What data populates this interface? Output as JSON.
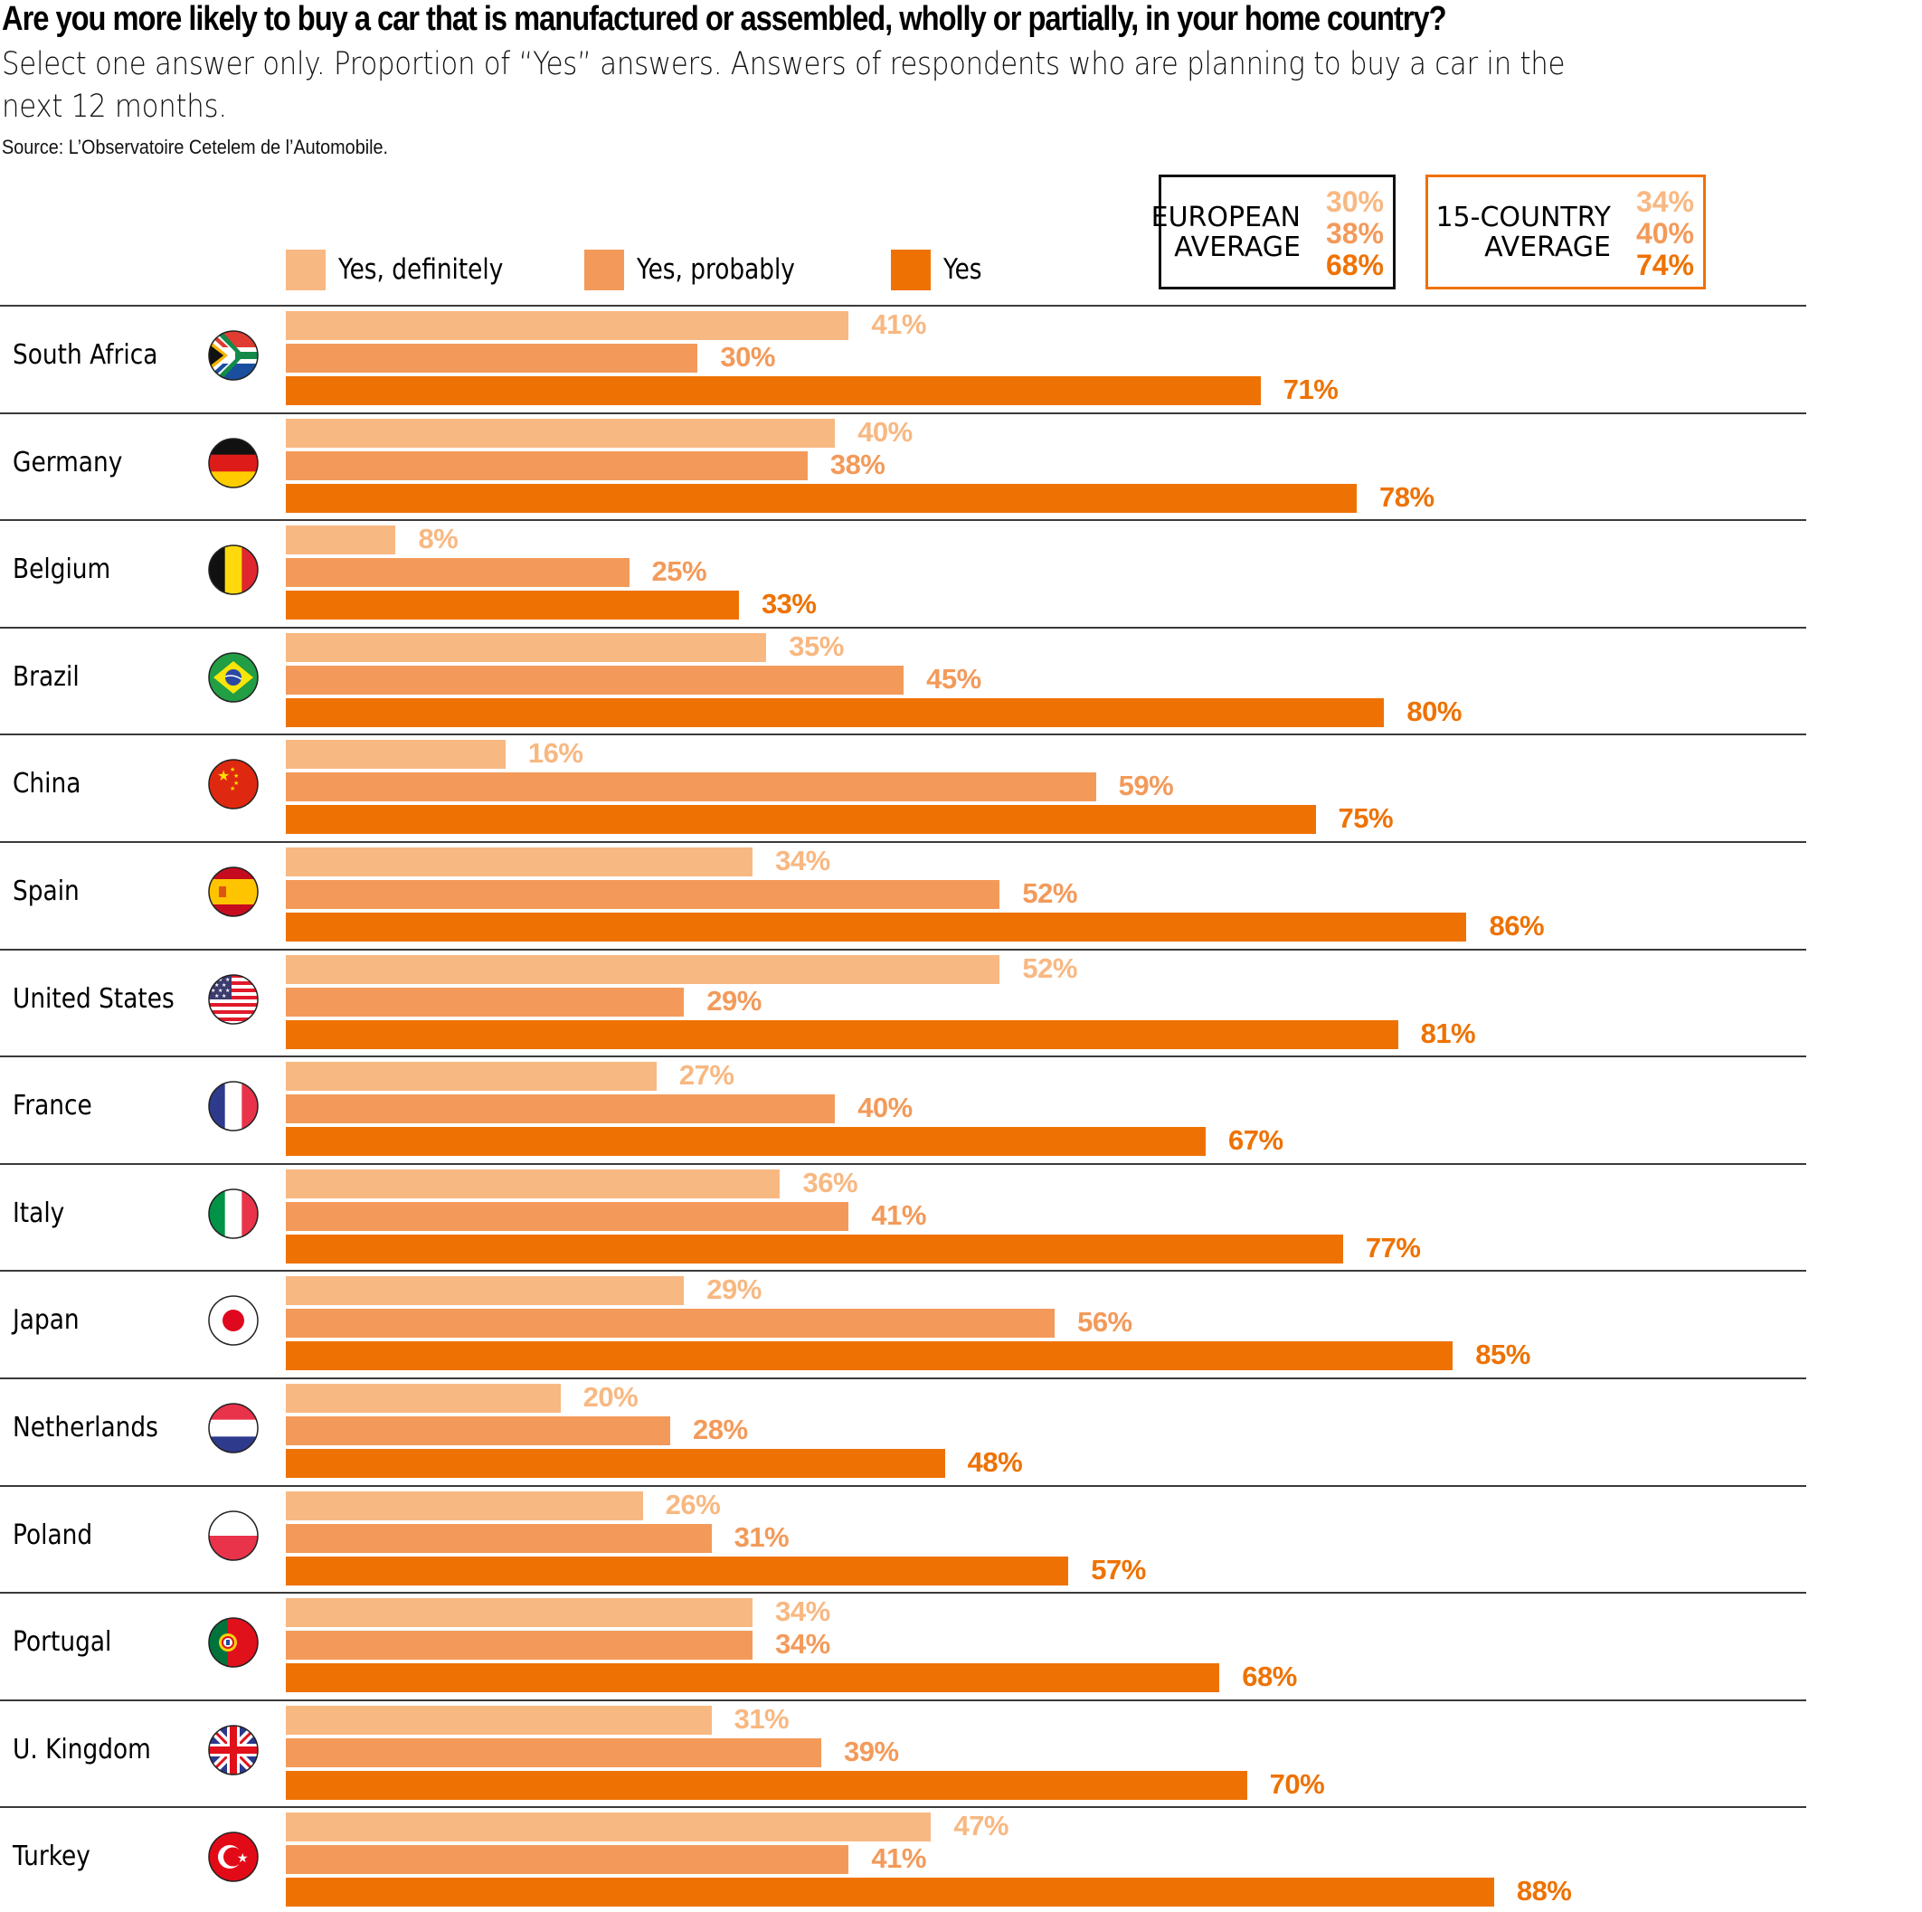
{
  "header": {
    "title": "Are you more likely to buy a car that is manufactured or assembled, wholly or partially, in your home country?",
    "subtitle": "Select one answer only. Proportion of “Yes” answers. Answers of respondents who are planning to buy a car in the next 12 months.",
    "source": "Source: L’Observatoire Cetelem de l’Automobile."
  },
  "colors": {
    "definitely": "#f8b882",
    "probably": "#f39a5a",
    "yes": "#ee7203",
    "divider": "#3a3a3a"
  },
  "legend": [
    {
      "label": "Yes, definitely",
      "series": "definitely"
    },
    {
      "label": "Yes, probably",
      "series": "probably"
    },
    {
      "label": "Yes",
      "series": "yes"
    }
  ],
  "averages": [
    {
      "label": "EUROPEAN\nAVERAGE",
      "values": [
        "30%",
        "38%",
        "68%"
      ]
    },
    {
      "label": "15-COUNTRY\nAVERAGE",
      "values": [
        "34%",
        "40%",
        "74%"
      ]
    }
  ],
  "chart_data": {
    "type": "bar",
    "orientation": "horizontal",
    "title": "Are you more likely to buy a car that is manufactured or assembled, wholly or partially, in your home country?",
    "subtitle": "Select one answer only. Proportion of “Yes” answers. Answers of respondents who are planning to buy a car in the next 12 months.",
    "xlabel": "",
    "ylabel": "",
    "xlim": [
      0,
      100
    ],
    "grid": false,
    "legend_position": "top",
    "categories": [
      "South Africa",
      "Germany",
      "Belgium",
      "Brazil",
      "China",
      "Spain",
      "United States",
      "France",
      "Italy",
      "Japan",
      "Netherlands",
      "Poland",
      "Portugal",
      "U. Kingdom",
      "Turkey"
    ],
    "flags": [
      "south-africa",
      "germany",
      "belgium",
      "brazil",
      "china",
      "spain",
      "united-states",
      "france",
      "italy",
      "japan",
      "netherlands",
      "poland",
      "portugal",
      "united-kingdom",
      "turkey"
    ],
    "series": [
      {
        "name": "Yes, definitely",
        "key": "definitely",
        "values": [
          41,
          40,
          8,
          35,
          16,
          34,
          52,
          27,
          36,
          29,
          20,
          26,
          34,
          31,
          47
        ]
      },
      {
        "name": "Yes, probably",
        "key": "probably",
        "values": [
          30,
          38,
          25,
          45,
          59,
          52,
          29,
          40,
          41,
          56,
          28,
          31,
          34,
          39,
          41
        ]
      },
      {
        "name": "Yes",
        "key": "yes",
        "values": [
          71,
          78,
          33,
          80,
          75,
          86,
          81,
          67,
          77,
          85,
          48,
          57,
          68,
          70,
          88
        ]
      }
    ],
    "averages": {
      "European average": {
        "Yes, definitely": 30,
        "Yes, probably": 38,
        "Yes": 68
      },
      "15-country average": {
        "Yes, definitely": 34,
        "Yes, probably": 40,
        "Yes": 74
      }
    },
    "value_suffix": "%"
  }
}
